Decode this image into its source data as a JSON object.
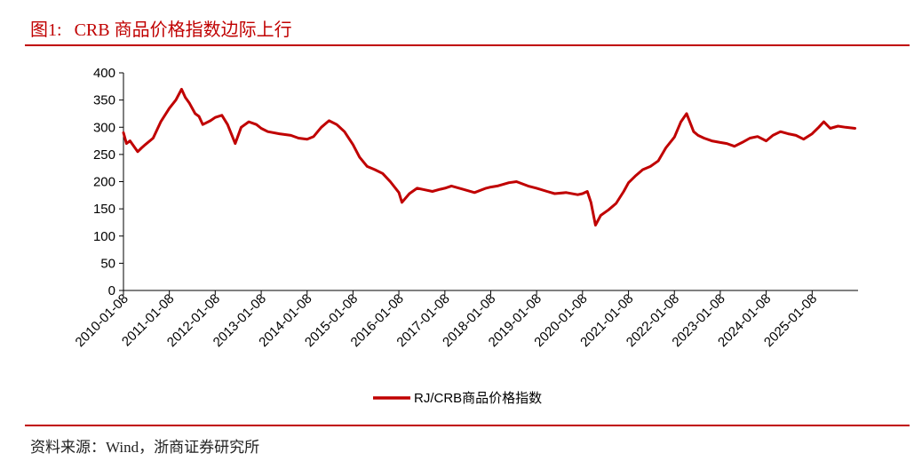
{
  "header": {
    "figure_number": "图1:",
    "figure_title": "CRB 商品价格指数边际上行"
  },
  "footer": {
    "source": "资料来源：Wind，浙商证券研究所"
  },
  "colors": {
    "accent": "#c00000",
    "series": "#c00000"
  },
  "chart_data": {
    "type": "line",
    "ylim": [
      0,
      400
    ],
    "yticks": [
      "0",
      "50",
      "100",
      "150",
      "200",
      "250",
      "300",
      "350",
      "400"
    ],
    "xticks": [
      "2010-01-08",
      "2011-01-08",
      "2012-01-08",
      "2013-01-08",
      "2014-01-08",
      "2015-01-08",
      "2016-01-08",
      "2017-01-08",
      "2018-01-08",
      "2019-01-08",
      "2020-01-08",
      "2021-01-08",
      "2022-01-08",
      "2023-01-08",
      "2024-01-08",
      "2025-01-08"
    ],
    "x_range": [
      "2010-01-08",
      "2026-01-08"
    ],
    "grid": false,
    "legend": "bottom-center",
    "series": [
      {
        "name": "RJ/CRB商品价格指数",
        "x": [
          "2010-01-08",
          "2010-02-01",
          "2010-03-01",
          "2010-05-01",
          "2010-06-01",
          "2010-07-01",
          "2010-09-01",
          "2010-11-01",
          "2011-01-08",
          "2011-03-01",
          "2011-04-15",
          "2011-05-15",
          "2011-06-15",
          "2011-08-01",
          "2011-09-01",
          "2011-10-01",
          "2011-12-01",
          "2012-01-08",
          "2012-03-01",
          "2012-04-15",
          "2012-06-15",
          "2012-08-01",
          "2012-10-01",
          "2012-12-01",
          "2013-01-08",
          "2013-03-01",
          "2013-06-01",
          "2013-09-01",
          "2013-11-01",
          "2014-01-08",
          "2014-03-01",
          "2014-05-01",
          "2014-07-01",
          "2014-09-01",
          "2014-11-01",
          "2015-01-08",
          "2015-03-01",
          "2015-05-01",
          "2015-07-01",
          "2015-09-01",
          "2015-11-01",
          "2016-01-08",
          "2016-02-01",
          "2016-04-01",
          "2016-06-01",
          "2016-08-01",
          "2016-10-01",
          "2016-12-01",
          "2017-01-08",
          "2017-03-01",
          "2017-06-01",
          "2017-09-01",
          "2017-12-01",
          "2018-01-08",
          "2018-03-01",
          "2018-06-01",
          "2018-08-01",
          "2018-11-01",
          "2019-01-08",
          "2019-04-01",
          "2019-06-01",
          "2019-09-01",
          "2019-12-01",
          "2020-01-08",
          "2020-02-15",
          "2020-03-15",
          "2020-04-20",
          "2020-06-01",
          "2020-08-01",
          "2020-10-01",
          "2020-12-01",
          "2021-01-08",
          "2021-03-01",
          "2021-05-01",
          "2021-07-01",
          "2021-09-01",
          "2021-11-01",
          "2022-01-08",
          "2022-03-01",
          "2022-04-15",
          "2022-06-10",
          "2022-07-15",
          "2022-09-01",
          "2022-11-01",
          "2023-01-08",
          "2023-03-01",
          "2023-05-01",
          "2023-07-01",
          "2023-09-01",
          "2023-11-01",
          "2024-01-08",
          "2024-03-01",
          "2024-05-01",
          "2024-07-01",
          "2024-09-01",
          "2024-11-01",
          "2025-01-08",
          "2025-03-01",
          "2025-04-10",
          "2025-06-01",
          "2025-08-01",
          "2025-10-01",
          "2025-12-15"
        ],
        "values": [
          290,
          270,
          275,
          255,
          262,
          268,
          280,
          310,
          335,
          350,
          370,
          355,
          345,
          325,
          320,
          305,
          312,
          318,
          322,
          305,
          270,
          300,
          310,
          305,
          298,
          292,
          288,
          285,
          280,
          278,
          283,
          300,
          312,
          305,
          292,
          268,
          245,
          228,
          222,
          215,
          200,
          180,
          162,
          178,
          188,
          185,
          182,
          186,
          188,
          192,
          186,
          180,
          188,
          190,
          192,
          198,
          200,
          192,
          188,
          182,
          178,
          180,
          176,
          178,
          182,
          162,
          120,
          138,
          148,
          160,
          182,
          198,
          210,
          222,
          228,
          238,
          262,
          282,
          310,
          325,
          292,
          285,
          280,
          275,
          272,
          270,
          265,
          272,
          280,
          283,
          275,
          285,
          292,
          288,
          285,
          278,
          288,
          300,
          310,
          298,
          302,
          300,
          298
        ]
      }
    ]
  },
  "legend": {
    "label": "RJ/CRB商品价格指数"
  }
}
